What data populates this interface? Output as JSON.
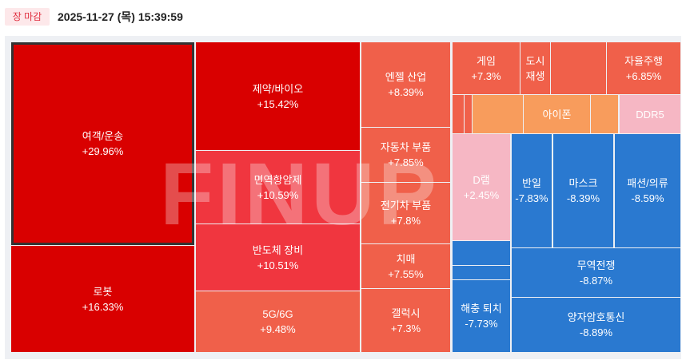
{
  "header": {
    "status": "장 마감",
    "timestamp": "2025-11-27 (목) 15:39:59"
  },
  "watermark": "FINUP",
  "tiles": [
    {
      "label": "여객/운송",
      "change": "+29.96%"
    },
    {
      "label": "로봇",
      "change": "+16.33%"
    },
    {
      "label": "제약/바이오",
      "change": "+15.42%"
    },
    {
      "label": "면역항암제",
      "change": "+10.59%"
    },
    {
      "label": "반도체 장비",
      "change": "+10.51%"
    },
    {
      "label": "5G/6G",
      "change": "+9.48%"
    },
    {
      "label": "엔젤 산업",
      "change": "+8.39%"
    },
    {
      "label": "자동차 부품",
      "change": "+7.85%"
    },
    {
      "label": "전기차 부품",
      "change": "+7.8%"
    },
    {
      "label": "치매",
      "change": "+7.55%"
    },
    {
      "label": "갤럭시",
      "change": "+7.3%"
    },
    {
      "label": "게임",
      "change": "+7.3%"
    },
    {
      "label": "도시 재생"
    },
    {
      "label": "자율주행",
      "change": "+6.85%"
    },
    {
      "label": "아이폰"
    },
    {
      "label": "DDR5"
    },
    {
      "label": "D램",
      "change": "+2.45%"
    },
    {
      "label": "반일",
      "change": "-7.83%"
    },
    {
      "label": "마스크",
      "change": "-8.39%"
    },
    {
      "label": "패션/의류",
      "change": "-8.59%"
    },
    {
      "label": "해충 퇴치",
      "change": "-7.73%"
    },
    {
      "label": "무역전쟁",
      "change": "-8.87%"
    },
    {
      "label": "양자암호통신",
      "change": "-8.89%"
    }
  ]
}
